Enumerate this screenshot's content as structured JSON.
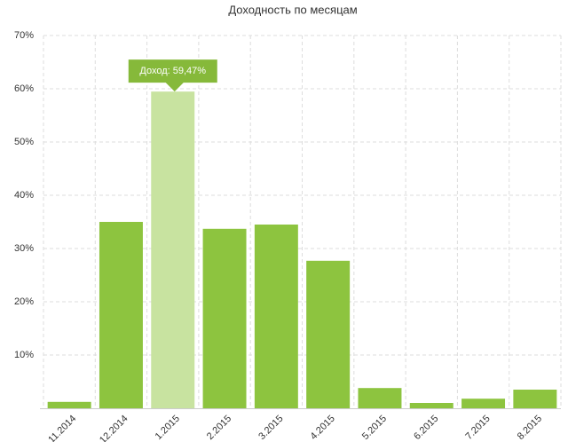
{
  "chart_data": {
    "type": "bar",
    "title": "Доходность по месяцам",
    "categories": [
      "11.2014",
      "12.2014",
      "1.2015",
      "2.2015",
      "3.2015",
      "4.2015",
      "5.2015",
      "6.2015",
      "7.2015",
      "8.2015"
    ],
    "values": [
      1.2,
      35,
      59.47,
      33.7,
      34.5,
      27.7,
      3.8,
      1.0,
      1.8,
      3.5
    ],
    "color": "#8dc43f",
    "highlight_color": "#c8e3a0",
    "tooltip": {
      "index": 2,
      "label": "Доход: 59,47%",
      "color": "#86b93a"
    },
    "ylim": [
      0,
      70
    ],
    "yticks": [
      {
        "value": 10,
        "label": "10%"
      },
      {
        "value": 20,
        "label": "20%"
      },
      {
        "value": 30,
        "label": "30%"
      },
      {
        "value": 40,
        "label": "40%"
      },
      {
        "value": 50,
        "label": "50%"
      },
      {
        "value": 60,
        "label": "60%"
      },
      {
        "value": 70,
        "label": "70%"
      }
    ],
    "grid": true
  }
}
